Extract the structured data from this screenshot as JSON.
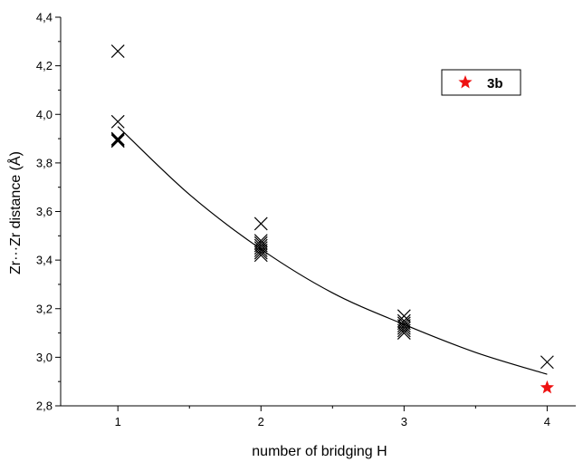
{
  "chart_data": {
    "type": "scatter",
    "xlabel": "number of bridging H",
    "ylabel": "Zr···Zr distance (Å)",
    "xlim": [
      0.6,
      4.2
    ],
    "ylim": [
      2.8,
      4.4
    ],
    "x_ticks": [
      1,
      2,
      3,
      4
    ],
    "y_ticks": [
      2.8,
      3.0,
      3.2,
      3.4,
      3.6,
      3.8,
      4.0,
      4.2,
      4.4
    ],
    "x_tick_labels": [
      "1",
      "2",
      "3",
      "4"
    ],
    "y_tick_labels": [
      "2,8",
      "3,0",
      "3,2",
      "3,4",
      "3,6",
      "3,8",
      "4,0",
      "4,2",
      "4,4"
    ],
    "grid": false,
    "legend_position": "top-right",
    "series": [
      {
        "marker": "x",
        "color": "#000000",
        "points": [
          [
            1,
            4.26
          ],
          [
            1,
            3.97
          ],
          [
            1,
            3.9
          ],
          [
            1,
            3.89
          ],
          [
            1,
            3.895
          ],
          [
            2,
            3.55
          ],
          [
            2,
            3.48
          ],
          [
            2,
            3.47
          ],
          [
            2,
            3.46
          ],
          [
            2,
            3.45
          ],
          [
            2,
            3.44
          ],
          [
            2,
            3.43
          ],
          [
            2,
            3.42
          ],
          [
            3,
            3.17
          ],
          [
            3,
            3.15
          ],
          [
            3,
            3.14
          ],
          [
            3,
            3.13
          ],
          [
            3,
            3.12
          ],
          [
            3,
            3.11
          ],
          [
            3,
            3.1
          ],
          [
            4,
            2.98
          ]
        ]
      },
      {
        "name": "3b",
        "marker": "star",
        "color": "#ee1111",
        "points": [
          [
            4,
            2.875
          ]
        ]
      }
    ],
    "fit_curve": {
      "color": "#000000",
      "points": [
        [
          1.0,
          3.95
        ],
        [
          1.5,
          3.67
        ],
        [
          2.0,
          3.445
        ],
        [
          2.5,
          3.265
        ],
        [
          3.0,
          3.135
        ],
        [
          3.5,
          3.02
        ],
        [
          4.0,
          2.93
        ]
      ]
    }
  }
}
